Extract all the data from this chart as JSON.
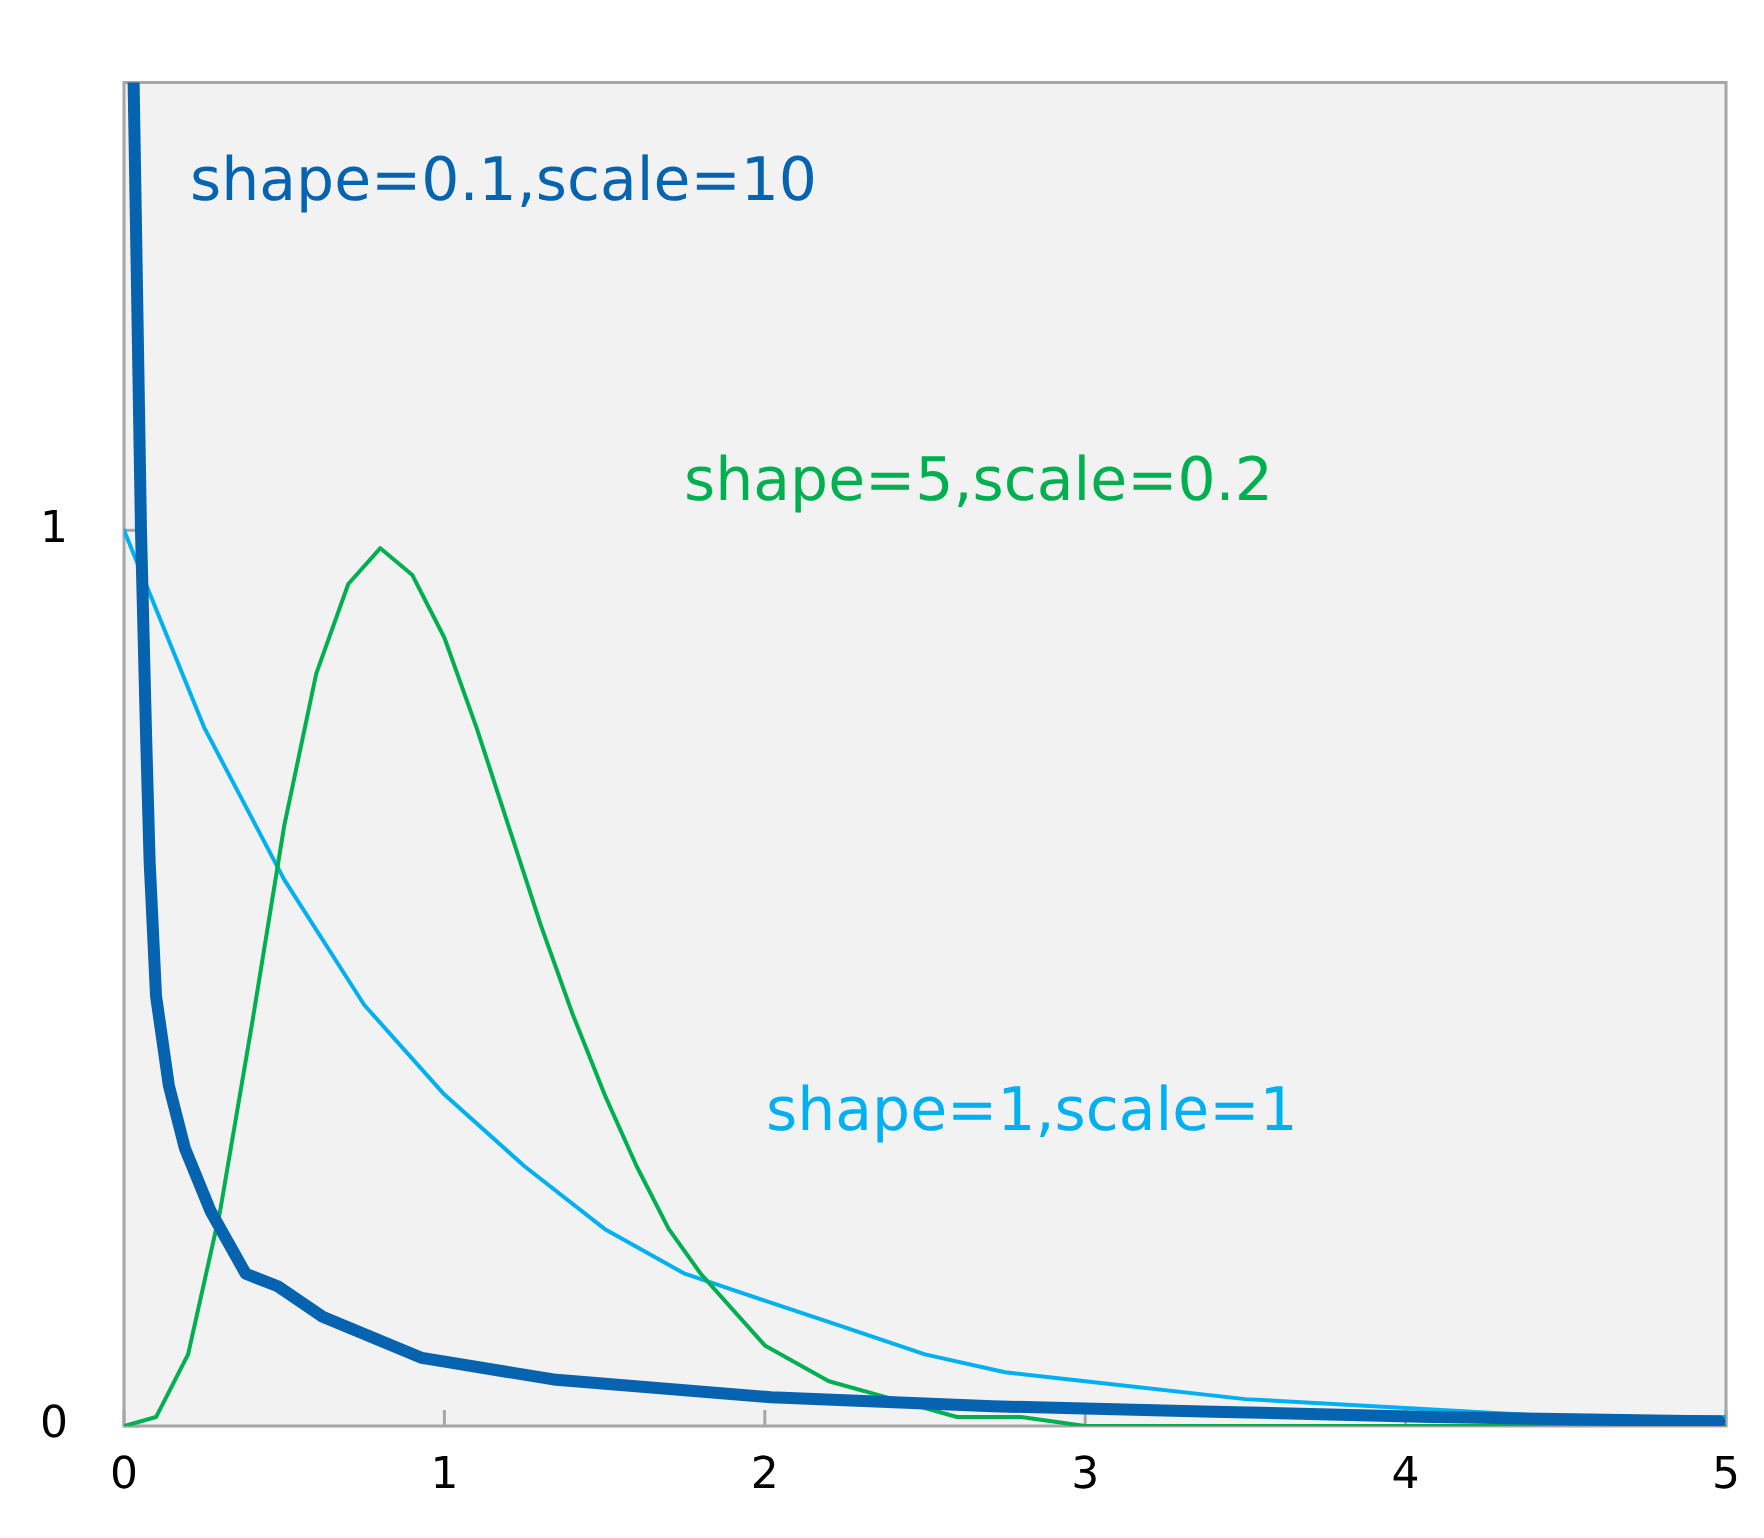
{
  "chart_data": {
    "type": "line",
    "xlim": [
      0,
      5
    ],
    "ylim": [
      0,
      1.5
    ],
    "xticks": [
      0,
      1,
      2,
      3,
      4,
      5
    ],
    "yticks": [
      0,
      1
    ],
    "grid": false,
    "legend": false,
    "marker": "none",
    "line_style": "solid",
    "series": [
      {
        "name": "shape=0.1,scale=10",
        "color": "#0563b0",
        "x": [
          0.03,
          0.053,
          0.069,
          0.08,
          0.1,
          0.14,
          0.19,
          0.27,
          0.38,
          0.48,
          0.62,
          0.93,
          1.34,
          2.02,
          2.71,
          3.4,
          4.08,
          4.98
        ],
        "values": [
          1.5,
          1.0,
          0.77,
          0.63,
          0.48,
          0.38,
          0.31,
          0.24,
          0.17,
          0.156,
          0.122,
          0.076,
          0.052,
          0.032,
          0.022,
          0.016,
          0.01,
          0.005
        ]
      },
      {
        "name": "shape=5,scale=0.2",
        "color": "#00b050",
        "x": [
          0,
          0.1,
          0.2,
          0.3,
          0.4,
          0.5,
          0.6,
          0.7,
          0.8,
          0.9,
          1.0,
          1.1,
          1.2,
          1.3,
          1.4,
          1.5,
          1.6,
          1.7,
          1.8,
          1.9,
          2.0,
          2.2,
          2.4,
          2.6,
          2.8,
          3.0,
          3.5,
          4.0,
          5.0
        ],
        "values": [
          0,
          0.01,
          0.08,
          0.24,
          0.45,
          0.67,
          0.84,
          0.94,
          0.98,
          0.95,
          0.88,
          0.78,
          0.67,
          0.56,
          0.46,
          0.37,
          0.29,
          0.22,
          0.17,
          0.13,
          0.09,
          0.05,
          0.03,
          0.01,
          0.01,
          0,
          0,
          0,
          0
        ]
      },
      {
        "name": "shape=1,scale=1",
        "color": "#00b0f0",
        "x": [
          0,
          0.25,
          0.5,
          0.75,
          1,
          1.25,
          1.5,
          1.75,
          2,
          2.25,
          2.5,
          2.75,
          3,
          3.5,
          4,
          4.5,
          5
        ],
        "values": [
          1,
          0.78,
          0.61,
          0.47,
          0.37,
          0.29,
          0.22,
          0.17,
          0.14,
          0.11,
          0.08,
          0.06,
          0.05,
          0.03,
          0.02,
          0.01,
          0.01
        ]
      }
    ]
  }
}
